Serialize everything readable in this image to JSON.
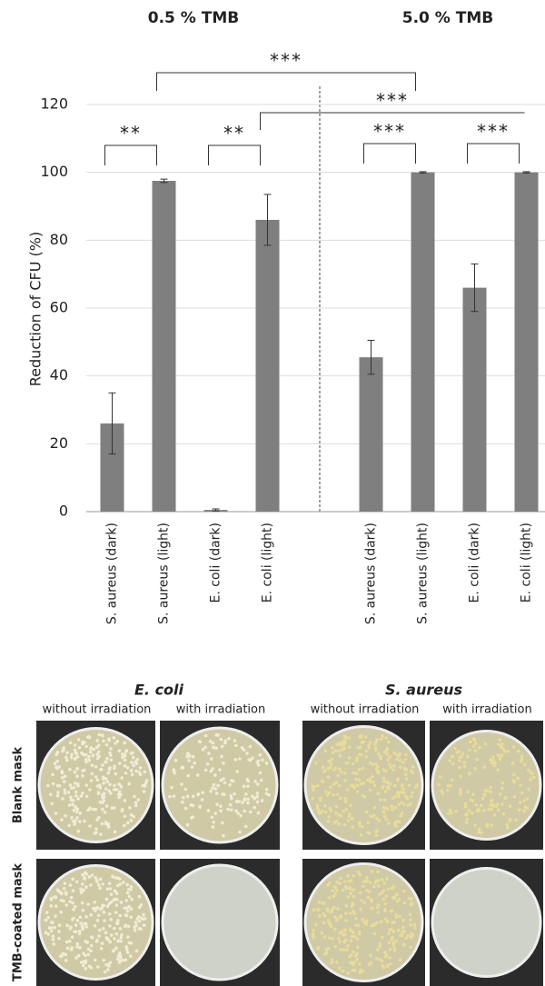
{
  "chart_data": {
    "type": "bar",
    "group_labels": [
      "0.5 % TMB",
      "5.0 % TMB"
    ],
    "y_label": "Reduction of CFU (%)",
    "categories": [
      "S. aureus (dark)",
      "S. aureus (light)",
      "E. coli (dark)",
      "E. coli (light)",
      null,
      "S. aureus (dark)",
      "S. aureus (light)",
      "E. coli (dark)",
      "E. coli (light)"
    ],
    "values": [
      26,
      97.5,
      0.5,
      86,
      null,
      45.5,
      100,
      66,
      100
    ],
    "errors": [
      9,
      0.5,
      0.3,
      7.5,
      null,
      5,
      0.2,
      7,
      0.2
    ],
    "color": "#7f7f7f",
    "ylim": [
      0,
      120
    ],
    "yticks": [
      0,
      20,
      40,
      60,
      80,
      100,
      120
    ],
    "grid": true,
    "annotations": [
      "**",
      "**",
      "***",
      "***",
      "***",
      "***"
    ]
  },
  "photos": {
    "columns": [
      {
        "title": "E. coli",
        "conditions": [
          "without irradiation",
          "with irradiation"
        ]
      },
      {
        "title": "S. aureus",
        "conditions": [
          "without irradiation",
          "with irradiation"
        ]
      }
    ],
    "rows": [
      "Blank mask",
      "TMB-coated mask"
    ]
  }
}
